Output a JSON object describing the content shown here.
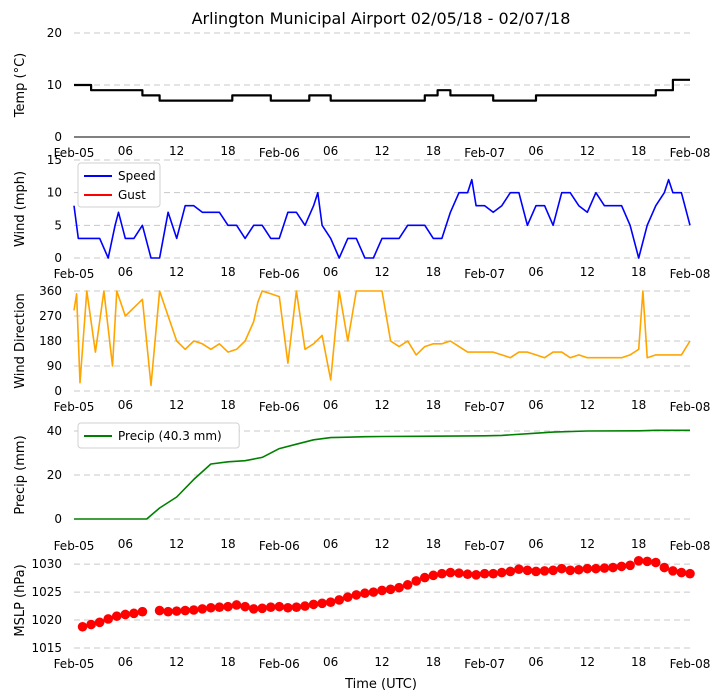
{
  "title": "Arlington Municipal Airport 02/05/18 - 02/07/18",
  "xlabel": "Time (UTC)",
  "colors": {
    "temp": "#000000",
    "speed": "#0000ff",
    "gust": "#ff0000",
    "dir": "#ffa500",
    "precip": "#008000",
    "mslp": "#ff0000"
  },
  "time_ticks": [
    {
      "h": 0,
      "label": "Feb-05"
    },
    {
      "h": 6,
      "label": "06"
    },
    {
      "h": 12,
      "label": "12"
    },
    {
      "h": 18,
      "label": "18"
    },
    {
      "h": 24,
      "label": "Feb-06"
    },
    {
      "h": 30,
      "label": "06"
    },
    {
      "h": 36,
      "label": "12"
    },
    {
      "h": 42,
      "label": "18"
    },
    {
      "h": 48,
      "label": "Feb-07"
    },
    {
      "h": 54,
      "label": "06"
    },
    {
      "h": 60,
      "label": "12"
    },
    {
      "h": 66,
      "label": "18"
    },
    {
      "h": 72,
      "label": "Feb-08"
    }
  ],
  "chart_data": [
    {
      "id": "temp",
      "type": "line",
      "ylabel": "Temp ($^\\circ$C)",
      "ylabel_display": "Temp (°C)",
      "xlim": [
        0,
        72
      ],
      "ylim": [
        0,
        20
      ],
      "yticks": [
        0,
        10,
        20
      ],
      "series": [
        {
          "name": "Temp",
          "color": "#000000",
          "x": [
            0,
            2,
            2,
            8,
            8,
            10,
            10,
            18.5,
            18.5,
            23,
            23,
            27.5,
            27.5,
            30,
            30,
            36,
            36,
            41,
            41,
            42.5,
            42.5,
            44,
            44,
            49,
            49,
            54,
            54,
            68,
            68,
            70,
            70,
            72
          ],
          "y": [
            10,
            10,
            9,
            9,
            8,
            8,
            7,
            7,
            8,
            8,
            7,
            7,
            8,
            8,
            7,
            7,
            7,
            7,
            8,
            8,
            9,
            9,
            8,
            8,
            7,
            7,
            8,
            8,
            9,
            9,
            11,
            11
          ]
        }
      ]
    },
    {
      "id": "wind",
      "type": "line",
      "ylabel": "Wind (mph)",
      "xlim": [
        0,
        72
      ],
      "ylim": [
        0,
        15
      ],
      "yticks": [
        0,
        5,
        10,
        15
      ],
      "legend": [
        "Speed",
        "Gust"
      ],
      "legend_loc": "top-left",
      "series": [
        {
          "name": "Speed",
          "color": "#0000ff",
          "x": [
            0,
            0.5,
            1,
            3,
            4,
            4.8,
            5.2,
            6,
            7,
            8,
            9,
            10,
            11,
            12,
            13,
            14,
            15,
            16,
            17,
            18,
            19,
            20,
            21,
            22,
            23,
            24,
            25,
            26,
            27,
            28,
            28.5,
            29,
            30,
            31,
            32,
            33,
            34,
            35,
            36,
            37,
            38,
            39,
            40,
            41,
            42,
            43,
            44,
            45,
            46,
            46.5,
            47,
            48,
            49,
            50,
            51,
            52,
            53,
            54,
            55,
            56,
            57,
            58,
            59,
            60,
            61,
            62,
            63,
            64,
            65,
            66,
            67,
            68,
            69,
            69.5,
            70,
            71,
            72
          ],
          "y": [
            8,
            3,
            3,
            3,
            0,
            5,
            7,
            3,
            3,
            5,
            0,
            0,
            7,
            3,
            8,
            8,
            7,
            7,
            7,
            5,
            5,
            3,
            5,
            5,
            3,
            3,
            7,
            7,
            5,
            8,
            10,
            5,
            3,
            0,
            3,
            3,
            0,
            0,
            3,
            3,
            3,
            5,
            5,
            5,
            3,
            3,
            7,
            10,
            10,
            12,
            8,
            8,
            7,
            8,
            10,
            10,
            5,
            8,
            8,
            5,
            10,
            10,
            8,
            7,
            10,
            8,
            8,
            8,
            5,
            0,
            5,
            8,
            10,
            12,
            10,
            10,
            5
          ]
        },
        {
          "name": "Gust",
          "color": "#ff0000",
          "x": [],
          "y": []
        }
      ]
    },
    {
      "id": "dir",
      "type": "line",
      "ylabel": "Wind Direction",
      "xlim": [
        0,
        72
      ],
      "ylim": [
        0,
        360
      ],
      "yticks": [
        0,
        90,
        180,
        270,
        360
      ],
      "series": [
        {
          "name": "Direction",
          "color": "#ffa500",
          "x": [
            0,
            0.3,
            0.7,
            1.5,
            2.5,
            3.5,
            4.5,
            5,
            6,
            7,
            8,
            9,
            10,
            11,
            12,
            13,
            14,
            15,
            16,
            17,
            18,
            19,
            20,
            21,
            21.5,
            22,
            23,
            24,
            25,
            26,
            27,
            28,
            29,
            30,
            31,
            32,
            33,
            34,
            35,
            36,
            37,
            38,
            39,
            40,
            41,
            42,
            43,
            44,
            45,
            46,
            47,
            48,
            49,
            50,
            51,
            52,
            53,
            54,
            55,
            56,
            57,
            58,
            59,
            60,
            61,
            62,
            63,
            64,
            65,
            66,
            66.5,
            67,
            68,
            69,
            70,
            71,
            72
          ],
          "y": [
            290,
            350,
            30,
            360,
            140,
            360,
            90,
            360,
            270,
            300,
            330,
            20,
            360,
            270,
            180,
            150,
            180,
            170,
            150,
            170,
            140,
            150,
            180,
            250,
            320,
            360,
            350,
            340,
            100,
            360,
            150,
            170,
            200,
            40,
            360,
            180,
            360,
            360,
            360,
            360,
            180,
            160,
            180,
            130,
            160,
            170,
            170,
            180,
            160,
            140,
            140,
            140,
            140,
            130,
            120,
            140,
            140,
            130,
            120,
            140,
            140,
            120,
            130,
            120,
            120,
            120,
            120,
            120,
            130,
            150,
            360,
            120,
            130,
            130,
            130,
            130,
            180
          ]
        }
      ]
    },
    {
      "id": "precip",
      "type": "line",
      "ylabel": "Precip (mm)",
      "xlim": [
        0,
        72
      ],
      "ylim": [
        -5,
        45
      ],
      "yticks": [
        0,
        20,
        40
      ],
      "legend": [
        "Precip (40.3 mm)"
      ],
      "legend_loc": "top-left",
      "series": [
        {
          "name": "Precip (40.3 mm)",
          "color": "#008000",
          "x": [
            0,
            8.5,
            10,
            12,
            14,
            16,
            18,
            20,
            22,
            24,
            26,
            28,
            30,
            32,
            34,
            36,
            40,
            44,
            48,
            50,
            54,
            56,
            60,
            66,
            68,
            72
          ],
          "y": [
            0,
            0,
            5,
            10,
            18,
            25,
            26,
            26.5,
            28,
            32,
            34,
            36,
            37,
            37.2,
            37.4,
            37.5,
            37.6,
            37.7,
            37.8,
            38,
            39,
            39.5,
            40,
            40.1,
            40.3,
            40.3
          ]
        }
      ]
    },
    {
      "id": "mslp",
      "type": "scatter",
      "ylabel": "MSLP (hPa)",
      "xlim": [
        0,
        72
      ],
      "ylim": [
        1015,
        1032
      ],
      "yticks": [
        1015,
        1020,
        1025,
        1030
      ],
      "series": [
        {
          "name": "MSLP",
          "color": "#ff0000",
          "x": [
            1,
            2,
            3,
            4,
            5,
            6,
            7,
            8,
            10,
            11,
            12,
            13,
            14,
            15,
            16,
            17,
            18,
            19,
            20,
            21,
            22,
            23,
            24,
            25,
            26,
            27,
            28,
            29,
            30,
            31,
            32,
            33,
            34,
            35,
            36,
            37,
            38,
            39,
            40,
            41,
            42,
            43,
            44,
            45,
            46,
            47,
            48,
            49,
            50,
            51,
            52,
            53,
            54,
            55,
            56,
            57,
            58,
            59,
            60,
            61,
            62,
            63,
            64,
            65,
            66,
            67,
            68,
            69,
            70,
            71,
            72
          ],
          "y": [
            1018.8,
            1019.2,
            1019.6,
            1020.2,
            1020.7,
            1021,
            1021.2,
            1021.5,
            1021.7,
            1021.5,
            1021.6,
            1021.7,
            1021.8,
            1022,
            1022.2,
            1022.3,
            1022.4,
            1022.7,
            1022.4,
            1022,
            1022.1,
            1022.3,
            1022.4,
            1022.2,
            1022.3,
            1022.5,
            1022.8,
            1023,
            1023.2,
            1023.6,
            1024.1,
            1024.5,
            1024.8,
            1025,
            1025.3,
            1025.5,
            1025.8,
            1026.3,
            1027,
            1027.6,
            1028,
            1028.3,
            1028.5,
            1028.4,
            1028.2,
            1028.1,
            1028.3,
            1028.3,
            1028.5,
            1028.7,
            1029.1,
            1028.9,
            1028.7,
            1028.8,
            1028.9,
            1029.2,
            1028.9,
            1029,
            1029.2,
            1029.2,
            1029.3,
            1029.4,
            1029.6,
            1029.8,
            1030.6,
            1030.5,
            1030.3,
            1029.4,
            1028.8,
            1028.5,
            1028.3
          ]
        }
      ]
    }
  ]
}
